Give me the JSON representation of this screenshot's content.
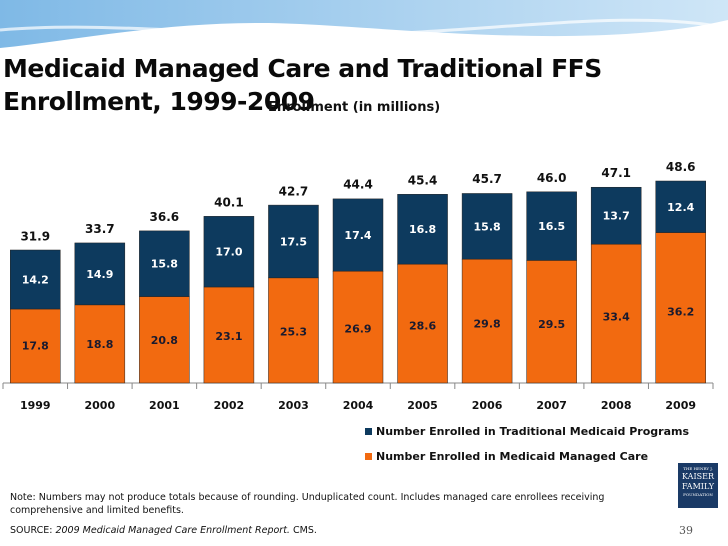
{
  "chart_data": {
    "type": "stacked-bar",
    "title": "Medicaid Managed Care and Traditional FFS Enrollment, 1999-2009",
    "subtitle": "Enrollment (in millions)",
    "categories": [
      "1999",
      "2000",
      "2001",
      "2002",
      "2003",
      "2004",
      "2005",
      "2006",
      "2007",
      "2008",
      "2009"
    ],
    "series": [
      {
        "name": "Number Enrolled in Medicaid Managed Care",
        "color": "#f26a10",
        "values": [
          17.8,
          18.8,
          20.8,
          23.1,
          25.3,
          26.9,
          28.6,
          29.8,
          29.5,
          33.4,
          36.2
        ]
      },
      {
        "name": "Number Enrolled in Traditional Medicaid Programs",
        "color": "#0d3a5e",
        "values": [
          14.2,
          14.9,
          15.8,
          17,
          17.5,
          17.4,
          16.8,
          15.8,
          16.5,
          13.7,
          12.4
        ],
        "value_labels": [
          "14.2",
          "14.9",
          "15.8",
          "17.0",
          "17.5",
          "17.4",
          "16.8",
          "15.8",
          "16.5",
          "13.7",
          "12.4"
        ]
      }
    ],
    "totals": {
      "values": [
        31.9,
        33.7,
        36.6,
        40.1,
        42.7,
        44.4,
        45.4,
        45.7,
        46,
        47.1,
        48.6
      ],
      "value_labels": [
        "31.9",
        "33.7",
        "36.6",
        "40.1",
        "42.7",
        "44.4",
        "45.4",
        "45.7",
        "46.0",
        "47.1",
        "48.6"
      ]
    }
  },
  "note": "Note: Numbers may not produce totals because of rounding. Unduplicated count. Includes managed care enrollees receiving comprehensive and limited benefits.",
  "source": {
    "label": "SOURCE:",
    "report": "2009 Medicaid Managed Care Enrollment Report.",
    "rest": "CMS."
  },
  "page_number": "39",
  "logo": {
    "line1": "THE HENRY J.",
    "line2": "KAISER",
    "line3": "FAMILY",
    "line4": "FOUNDATION"
  }
}
